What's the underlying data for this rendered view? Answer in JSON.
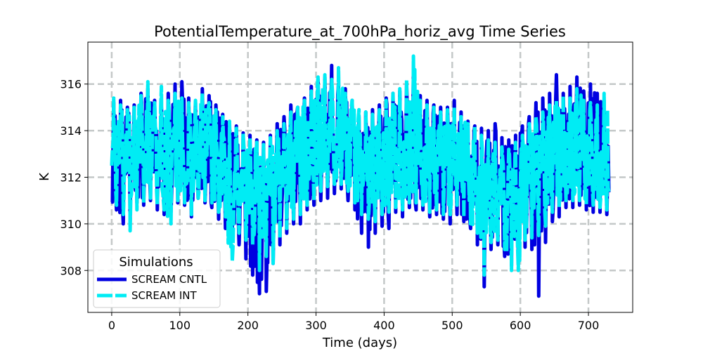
{
  "chart_data": {
    "type": "line",
    "title": "PotentialTemperature_at_700hPa_horiz_avg Time Series",
    "xlabel": "Time (days)",
    "ylabel": "K",
    "xlim": [
      -35,
      765
    ],
    "ylim": [
      306.2,
      317.8
    ],
    "xticks": [
      0,
      100,
      200,
      300,
      400,
      500,
      600,
      700
    ],
    "yticks": [
      308,
      310,
      312,
      314,
      316
    ],
    "grid": true,
    "legend": {
      "title": "Simulations",
      "location": "lower-left"
    },
    "series": [
      {
        "name": "SCREAM CNTL",
        "color": "#0000e0",
        "style": "solid",
        "x": [
          0,
          10,
          20,
          30,
          40,
          50,
          60,
          70,
          80,
          90,
          100,
          110,
          120,
          130,
          140,
          150,
          160,
          170,
          180,
          190,
          200,
          210,
          220,
          230,
          240,
          250,
          260,
          270,
          280,
          290,
          300,
          310,
          320,
          330,
          340,
          350,
          360,
          370,
          380,
          390,
          400,
          410,
          420,
          430,
          440,
          450,
          460,
          470,
          480,
          490,
          500,
          510,
          520,
          530,
          540,
          550,
          560,
          570,
          580,
          590,
          600,
          610,
          620,
          630,
          640,
          650,
          660,
          670,
          680,
          690,
          700,
          710,
          720,
          730
        ],
        "mean": [
          313.2,
          312.9,
          312.6,
          312.8,
          313.1,
          313.4,
          313.0,
          312.7,
          313.0,
          313.3,
          313.2,
          312.9,
          313.0,
          313.3,
          313.1,
          312.8,
          312.6,
          312.4,
          312.1,
          311.9,
          311.7,
          311.4,
          311.3,
          311.6,
          311.9,
          312.2,
          312.4,
          312.6,
          312.9,
          313.2,
          313.5,
          313.8,
          313.9,
          313.7,
          313.5,
          313.1,
          312.7,
          312.6,
          312.5,
          312.7,
          312.9,
          313.0,
          313.1,
          313.2,
          313.1,
          313.0,
          312.9,
          312.7,
          312.6,
          312.7,
          312.8,
          312.5,
          312.2,
          312.0,
          311.7,
          311.6,
          311.5,
          311.3,
          311.2,
          311.4,
          311.6,
          311.9,
          312.2,
          312.5,
          312.9,
          313.2,
          313.3,
          313.2,
          313.1,
          313.0,
          312.9,
          312.9,
          312.8,
          312.8
        ],
        "max": [
          315.2,
          315.3,
          315.0,
          315.1,
          315.6,
          315.8,
          315.3,
          315.0,
          315.6,
          316.0,
          316.1,
          315.4,
          315.2,
          315.8,
          315.5,
          315.1,
          314.7,
          314.3,
          314.2,
          313.9,
          313.8,
          313.6,
          313.5,
          313.8,
          314.3,
          314.6,
          315.1,
          315.0,
          315.4,
          315.9,
          316.2,
          316.3,
          316.8,
          316.0,
          315.8,
          315.3,
          314.6,
          314.8,
          314.9,
          315.1,
          315.4,
          315.6,
          315.7,
          316.0,
          316.4,
          315.5,
          315.3,
          315.1,
          315.0,
          315.0,
          315.3,
          314.8,
          314.4,
          314.2,
          314.1,
          314.0,
          314.3,
          313.7,
          313.6,
          313.8,
          314.2,
          314.6,
          315.2,
          315.4,
          315.6,
          316.4,
          315.6,
          315.9,
          316.3,
          315.7,
          316.0,
          315.6,
          315.3,
          315.0
        ],
        "min": [
          310.6,
          310.0,
          310.1,
          310.9,
          310.8,
          311.0,
          310.6,
          310.4,
          310.5,
          310.9,
          310.8,
          310.3,
          311.1,
          310.9,
          310.7,
          310.2,
          309.8,
          309.4,
          309.1,
          308.5,
          307.8,
          307.0,
          307.1,
          308.3,
          309.1,
          309.6,
          310.0,
          310.0,
          310.6,
          310.8,
          311.0,
          311.1,
          311.3,
          311.5,
          311.0,
          310.6,
          309.6,
          309.0,
          309.6,
          309.9,
          309.8,
          310.5,
          310.3,
          310.7,
          310.6,
          310.6,
          310.3,
          310.4,
          310.2,
          310.0,
          310.4,
          310.1,
          309.8,
          309.1,
          307.3,
          308.9,
          309.1,
          308.6,
          308.2,
          308.6,
          309.0,
          308.9,
          306.9,
          309.2,
          310.1,
          310.3,
          310.7,
          310.7,
          310.8,
          310.6,
          310.5,
          310.5,
          310.4,
          311.0
        ]
      },
      {
        "name": "SCREAM INT",
        "color": "#00ecf4",
        "style": "dashed",
        "x": [
          0,
          10,
          20,
          30,
          40,
          50,
          60,
          70,
          80,
          90,
          100,
          110,
          120,
          130,
          140,
          150,
          160,
          170,
          180,
          190,
          200,
          210,
          220,
          230,
          240,
          250,
          260,
          270,
          280,
          290,
          300,
          310,
          320,
          330,
          340,
          350,
          360,
          370,
          380,
          390,
          400,
          410,
          420,
          430,
          440,
          450,
          460,
          470,
          480,
          490,
          500,
          510,
          520,
          530,
          540,
          550,
          560,
          570,
          580,
          590,
          600,
          610,
          620,
          630,
          640,
          650,
          660,
          670,
          680,
          690,
          700,
          710,
          720,
          730
        ],
        "mean": [
          313.3,
          313.0,
          312.8,
          312.9,
          313.2,
          313.5,
          313.1,
          312.8,
          313.1,
          313.4,
          313.2,
          313.0,
          313.1,
          313.4,
          313.2,
          312.9,
          312.7,
          312.5,
          312.2,
          312.0,
          311.8,
          311.6,
          311.5,
          311.8,
          312.1,
          312.4,
          312.6,
          312.8,
          313.1,
          313.4,
          313.7,
          314.0,
          314.0,
          313.8,
          313.6,
          313.2,
          312.9,
          312.8,
          312.7,
          312.9,
          313.1,
          313.2,
          313.3,
          313.4,
          313.3,
          313.2,
          313.0,
          312.9,
          312.8,
          312.9,
          313.0,
          312.7,
          312.4,
          312.2,
          311.9,
          311.8,
          311.7,
          311.5,
          311.4,
          311.6,
          311.8,
          312.1,
          312.4,
          312.7,
          313.0,
          313.3,
          313.4,
          313.3,
          313.2,
          313.1,
          313.1,
          313.0,
          313.0,
          313.0
        ],
        "max": [
          315.4,
          315.1,
          314.9,
          315.0,
          315.5,
          316.1,
          315.2,
          315.9,
          315.3,
          315.6,
          315.4,
          315.2,
          315.3,
          315.6,
          315.2,
          314.9,
          314.6,
          314.4,
          314.1,
          313.9,
          313.7,
          313.5,
          313.4,
          313.7,
          314.0,
          314.3,
          314.8,
          315.0,
          315.3,
          315.7,
          316.3,
          316.4,
          316.2,
          316.7,
          315.6,
          315.3,
          314.9,
          314.8,
          314.7,
          314.9,
          315.3,
          315.6,
          315.8,
          316.2,
          317.2,
          315.3,
          315.1,
          315.0,
          314.8,
          314.9,
          315.0,
          314.6,
          314.3,
          314.2,
          313.8,
          313.6,
          313.5,
          313.3,
          313.2,
          313.5,
          313.8,
          314.3,
          314.6,
          314.8,
          315.1,
          315.3,
          315.5,
          315.4,
          315.8,
          315.3,
          315.2,
          315.1,
          315.6,
          314.8
        ],
        "min": [
          310.8,
          310.4,
          309.7,
          310.6,
          310.9,
          311.1,
          310.8,
          310.6,
          310.0,
          311.0,
          310.9,
          310.4,
          311.1,
          311.0,
          310.9,
          310.5,
          310.3,
          308.4,
          309.6,
          309.3,
          309.1,
          308.0,
          308.6,
          308.3,
          309.4,
          309.8,
          310.2,
          310.4,
          310.8,
          311.0,
          311.4,
          311.6,
          311.7,
          311.7,
          311.4,
          310.9,
          310.4,
          310.2,
          310.1,
          310.4,
          310.5,
          310.7,
          310.6,
          310.9,
          310.9,
          310.8,
          310.5,
          310.6,
          310.4,
          310.4,
          310.8,
          310.3,
          310.0,
          309.6,
          307.8,
          309.2,
          309.3,
          308.9,
          308.0,
          308.0,
          309.3,
          309.4,
          309.5,
          309.9,
          310.5,
          310.7,
          311.0,
          311.0,
          311.0,
          310.8,
          310.8,
          310.7,
          310.6,
          311.2
        ]
      }
    ]
  }
}
